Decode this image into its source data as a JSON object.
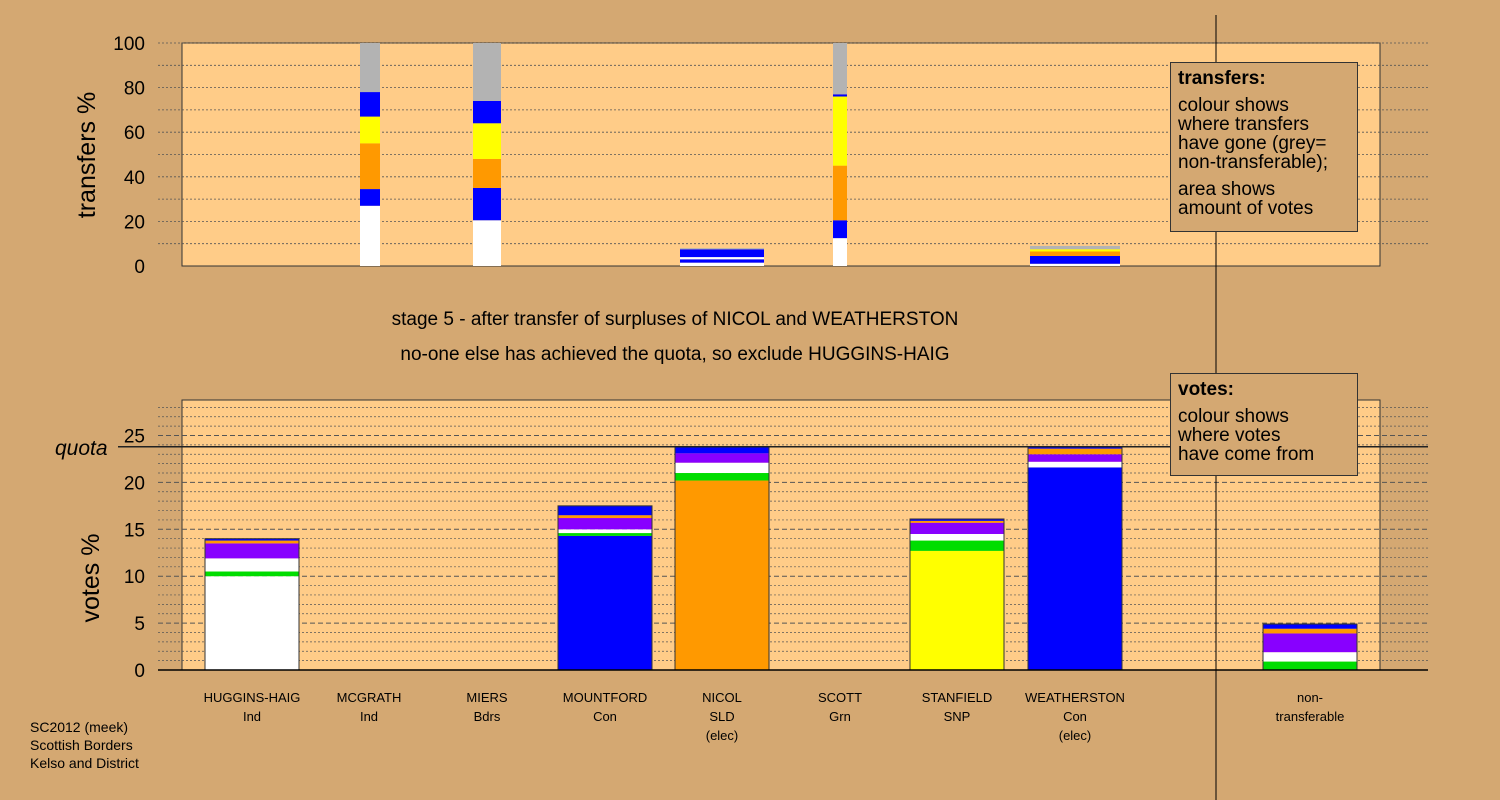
{
  "stage_title": "stage 5 - after transfer of surpluses of NICOL and WEATHERSTON",
  "stage_subtitle": "no-one else has achieved the quota, so exclude HUGGINS-HAIG",
  "quota_label": "quota",
  "legend_transfers": {
    "title": "transfers:",
    "lines": [
      "colour shows",
      "where transfers",
      "have gone (grey=",
      "non-transferable);",
      "area shows",
      "amount of votes"
    ]
  },
  "legend_votes": {
    "title": "votes:",
    "lines": [
      "colour shows",
      "where votes",
      "have come from"
    ]
  },
  "footer": [
    "SC2012 (meek)",
    "Scottish Borders",
    "Kelso and District"
  ],
  "colors": {
    "HUGGINS-HAIG": "#ffffff",
    "MCGRATH": "#0000ff",
    "MIERS": "#ff9900",
    "MOUNTFORD": "#0000ff",
    "NICOL": "#ff9900",
    "SCOTT": "#00dd00",
    "STANFIELD": "#ffff00",
    "WEATHERSTON": "#0000ff",
    "nontransferable": "#b3b3b3",
    "other": "#8800ff",
    "background": "#d4a872",
    "plot": "#ffcc88"
  },
  "candidates": [
    {
      "name": "HUGGINS-HAIG",
      "party": "Ind",
      "elec": ""
    },
    {
      "name": "MCGRATH",
      "party": "Ind",
      "elec": ""
    },
    {
      "name": "MIERS",
      "party": "Bdrs",
      "elec": ""
    },
    {
      "name": "MOUNTFORD",
      "party": "Con",
      "elec": ""
    },
    {
      "name": "NICOL",
      "party": "SLD",
      "elec": "(elec)"
    },
    {
      "name": "SCOTT",
      "party": "Grn",
      "elec": ""
    },
    {
      "name": "STANFIELD",
      "party": "SNP",
      "elec": ""
    },
    {
      "name": "WEATHERSTON",
      "party": "Con",
      "elec": "(elec)"
    },
    {
      "name": "non-",
      "party": "transferable",
      "elec": ""
    }
  ],
  "chart_data": [
    {
      "type": "bar",
      "stacked": true,
      "ylabel": "transfers %",
      "ylim": [
        0,
        100
      ],
      "yticks": [
        0,
        20,
        40,
        60,
        80,
        100
      ],
      "bars": [
        {
          "candidate": "MCGRATH",
          "segments": [
            {
              "color": "#ffffff",
              "value": 27
            },
            {
              "color": "#0000ff",
              "value": 7.5
            },
            {
              "color": "#ff9900",
              "value": 20.5
            },
            {
              "color": "#ffff00",
              "value": 12
            },
            {
              "color": "#0000ff",
              "value": 11
            },
            {
              "color": "#b3b3b3",
              "value": 22
            }
          ]
        },
        {
          "candidate": "MIERS",
          "segments": [
            {
              "color": "#ffffff",
              "value": 20.5
            },
            {
              "color": "#0000ff",
              "value": 14.5
            },
            {
              "color": "#ff9900",
              "value": 13
            },
            {
              "color": "#ffff00",
              "value": 16
            },
            {
              "color": "#0000ff",
              "value": 10
            },
            {
              "color": "#b3b3b3",
              "value": 26
            }
          ]
        },
        {
          "candidate": "NICOL",
          "segments": [
            {
              "color": "#ffffff",
              "value": 1.5
            },
            {
              "color": "#0000ff",
              "value": 1.5
            },
            {
              "color": "#ffffff",
              "value": 1
            },
            {
              "color": "#0000ff",
              "value": 3.5
            },
            {
              "color": "#b3b3b3",
              "value": 0.5
            }
          ]
        },
        {
          "candidate": "SCOTT",
          "segments": [
            {
              "color": "#ffffff",
              "value": 12.5
            },
            {
              "color": "#0000ff",
              "value": 8
            },
            {
              "color": "#ff9900",
              "value": 24.5
            },
            {
              "color": "#ffff00",
              "value": 31
            },
            {
              "color": "#0000ff",
              "value": 1
            },
            {
              "color": "#b3b3b3",
              "value": 23
            }
          ]
        },
        {
          "candidate": "WEATHERSTON",
          "segments": [
            {
              "color": "#ffffff",
              "value": 1
            },
            {
              "color": "#0000ff",
              "value": 3.5
            },
            {
              "color": "#ff9900",
              "value": 2
            },
            {
              "color": "#ffff00",
              "value": 1
            },
            {
              "color": "#b3b3b3",
              "value": 1.5
            }
          ]
        }
      ]
    },
    {
      "type": "bar",
      "stacked": true,
      "ylabel": "votes %",
      "ylim": [
        0,
        25
      ],
      "yticks": [
        0,
        5,
        10,
        15,
        20,
        25
      ],
      "quota": 23.8,
      "bars": [
        {
          "candidate": "HUGGINS-HAIG",
          "segments": [
            {
              "color": "#ffffff",
              "value": 10
            },
            {
              "color": "#00dd00",
              "value": 0.5
            },
            {
              "color": "#ffffff",
              "value": 1.4
            },
            {
              "color": "#8800ff",
              "value": 1.6
            },
            {
              "color": "#ff9900",
              "value": 0.3
            },
            {
              "color": "#0000ff",
              "value": 0.2
            }
          ]
        },
        {
          "candidate": "MOUNTFORD",
          "segments": [
            {
              "color": "#0000ff",
              "value": 14.3
            },
            {
              "color": "#00dd00",
              "value": 0.3
            },
            {
              "color": "#ffffff",
              "value": 0.4
            },
            {
              "color": "#8800ff",
              "value": 1.2
            },
            {
              "color": "#ff9900",
              "value": 0.3
            },
            {
              "color": "#0000ff",
              "value": 1
            }
          ]
        },
        {
          "candidate": "NICOL",
          "segments": [
            {
              "color": "#ff9900",
              "value": 20.2
            },
            {
              "color": "#00dd00",
              "value": 0.8
            },
            {
              "color": "#ffffff",
              "value": 1.1
            },
            {
              "color": "#8800ff",
              "value": 1
            },
            {
              "color": "#0000ff",
              "value": 0.7
            }
          ]
        },
        {
          "candidate": "STANFIELD",
          "segments": [
            {
              "color": "#ffff00",
              "value": 12.7
            },
            {
              "color": "#00dd00",
              "value": 1.1
            },
            {
              "color": "#ffffff",
              "value": 0.7
            },
            {
              "color": "#8800ff",
              "value": 1.2
            },
            {
              "color": "#ff9900",
              "value": 0.2
            },
            {
              "color": "#0000ff",
              "value": 0.2
            }
          ]
        },
        {
          "candidate": "WEATHERSTON",
          "segments": [
            {
              "color": "#0000ff",
              "value": 21.6
            },
            {
              "color": "#ffffff",
              "value": 0.6
            },
            {
              "color": "#8800ff",
              "value": 0.8
            },
            {
              "color": "#ff9900",
              "value": 0.6
            },
            {
              "color": "#0000ff",
              "value": 0.2
            }
          ]
        },
        {
          "candidate": "nontransferable",
          "segments": [
            {
              "color": "#00dd00",
              "value": 0.9
            },
            {
              "color": "#ffffff",
              "value": 1
            },
            {
              "color": "#8800ff",
              "value": 2
            },
            {
              "color": "#ff9900",
              "value": 0.5
            },
            {
              "color": "#0000ff",
              "value": 0.5
            }
          ]
        }
      ]
    }
  ]
}
